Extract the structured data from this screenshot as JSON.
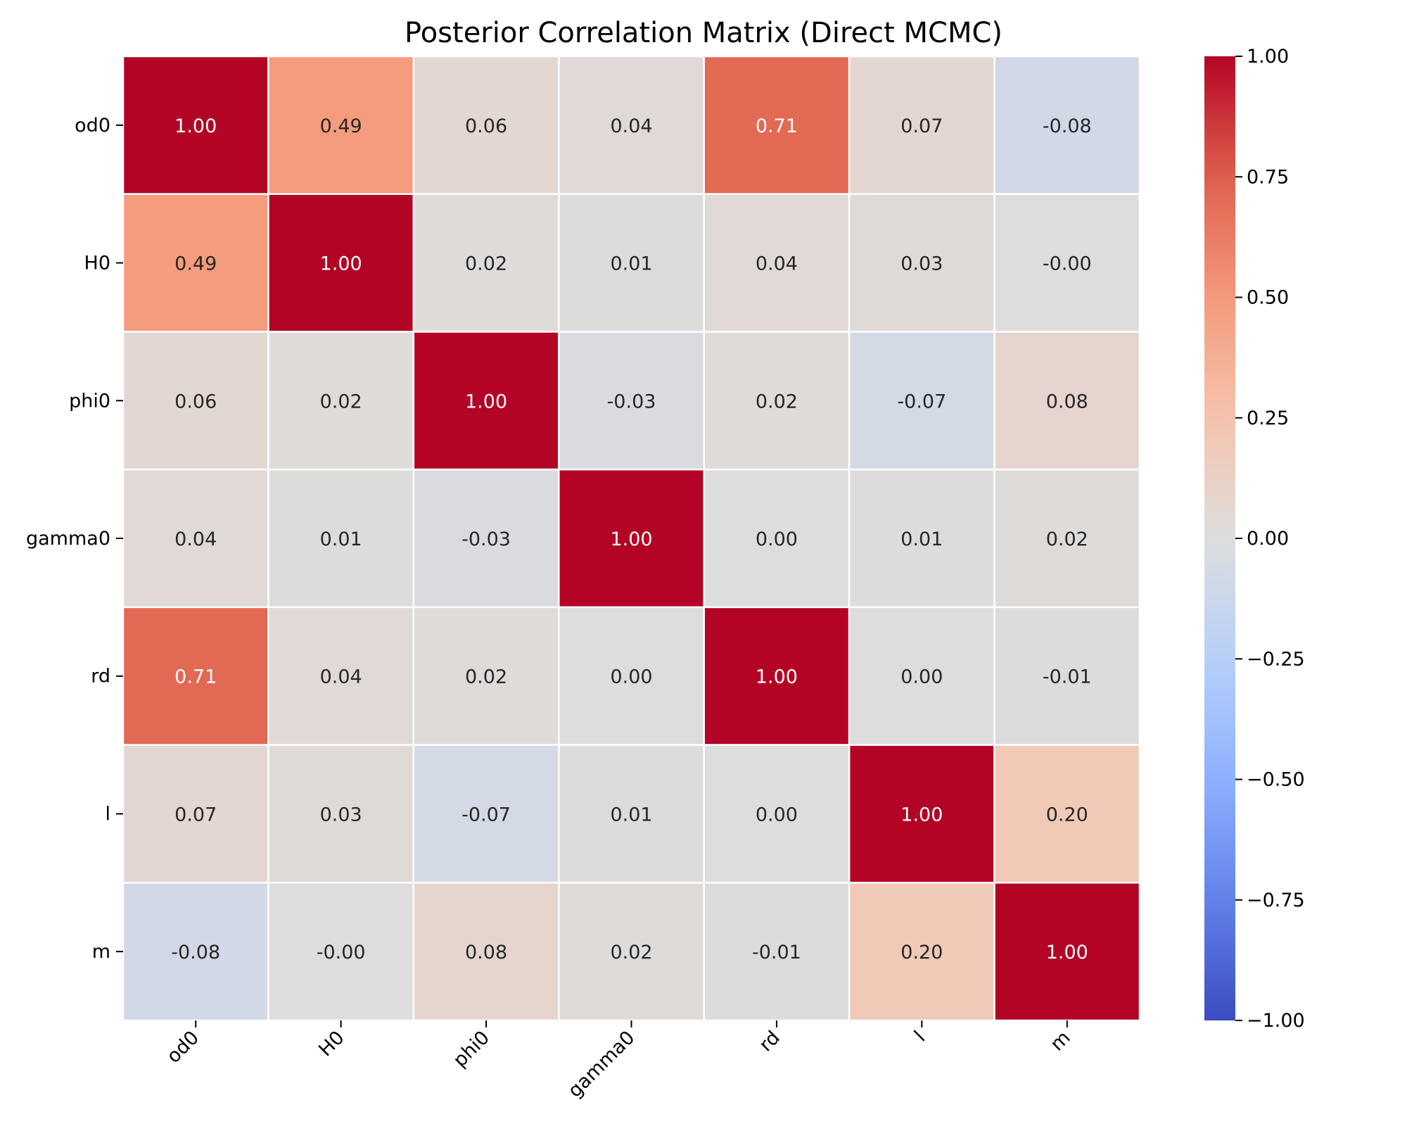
{
  "chart_data": {
    "type": "heatmap",
    "title": "Posterior Correlation Matrix (Direct MCMC)",
    "row_labels": [
      "od0",
      "H0",
      "phi0",
      "gamma0",
      "rd",
      "l",
      "m"
    ],
    "col_labels": [
      "od0",
      "H0",
      "phi0",
      "gamma0",
      "rd",
      "l",
      "m"
    ],
    "values": [
      [
        1.0,
        0.49,
        0.06,
        0.04,
        0.71,
        0.07,
        -0.08
      ],
      [
        0.49,
        1.0,
        0.02,
        0.01,
        0.04,
        0.03,
        -0.0
      ],
      [
        0.06,
        0.02,
        1.0,
        -0.03,
        0.02,
        -0.07,
        0.08
      ],
      [
        0.04,
        0.01,
        -0.03,
        1.0,
        0.0,
        0.01,
        0.02
      ],
      [
        0.71,
        0.04,
        0.02,
        0.0,
        1.0,
        0.0,
        -0.01
      ],
      [
        0.07,
        0.03,
        -0.07,
        0.01,
        0.0,
        1.0,
        0.2
      ],
      [
        -0.08,
        -0.0,
        0.08,
        0.02,
        -0.01,
        0.2,
        1.0
      ]
    ],
    "cell_labels": [
      [
        "1.00",
        "0.49",
        "0.06",
        "0.04",
        "0.71",
        "0.07",
        "-0.08"
      ],
      [
        "0.49",
        "1.00",
        "0.02",
        "0.01",
        "0.04",
        "0.03",
        "-0.00"
      ],
      [
        "0.06",
        "0.02",
        "1.00",
        "-0.03",
        "0.02",
        "-0.07",
        "0.08"
      ],
      [
        "0.04",
        "0.01",
        "-0.03",
        "1.00",
        "0.00",
        "0.01",
        "0.02"
      ],
      [
        "0.71",
        "0.04",
        "0.02",
        "0.00",
        "1.00",
        "0.00",
        "-0.01"
      ],
      [
        "0.07",
        "0.03",
        "-0.07",
        "0.01",
        "0.00",
        "1.00",
        "0.20"
      ],
      [
        "-0.08",
        "-0.00",
        "0.08",
        "0.02",
        "-0.01",
        "0.20",
        "1.00"
      ]
    ],
    "colormap": "coolwarm",
    "vmin": -1.0,
    "vmax": 1.0,
    "colorbar_ticks": [
      1.0,
      0.75,
      0.5,
      0.25,
      0.0,
      -0.25,
      -0.5,
      -0.75,
      -1.0
    ],
    "colorbar_tick_labels": [
      "1.00",
      "0.75",
      "0.50",
      "0.25",
      "0.00",
      "−0.25",
      "−0.50",
      "−0.75",
      "−1.00"
    ],
    "colors": {
      "low": "#3b4cc0",
      "mid": "#dddddd",
      "high": "#b40426",
      "gridline": "#ffffff"
    }
  }
}
